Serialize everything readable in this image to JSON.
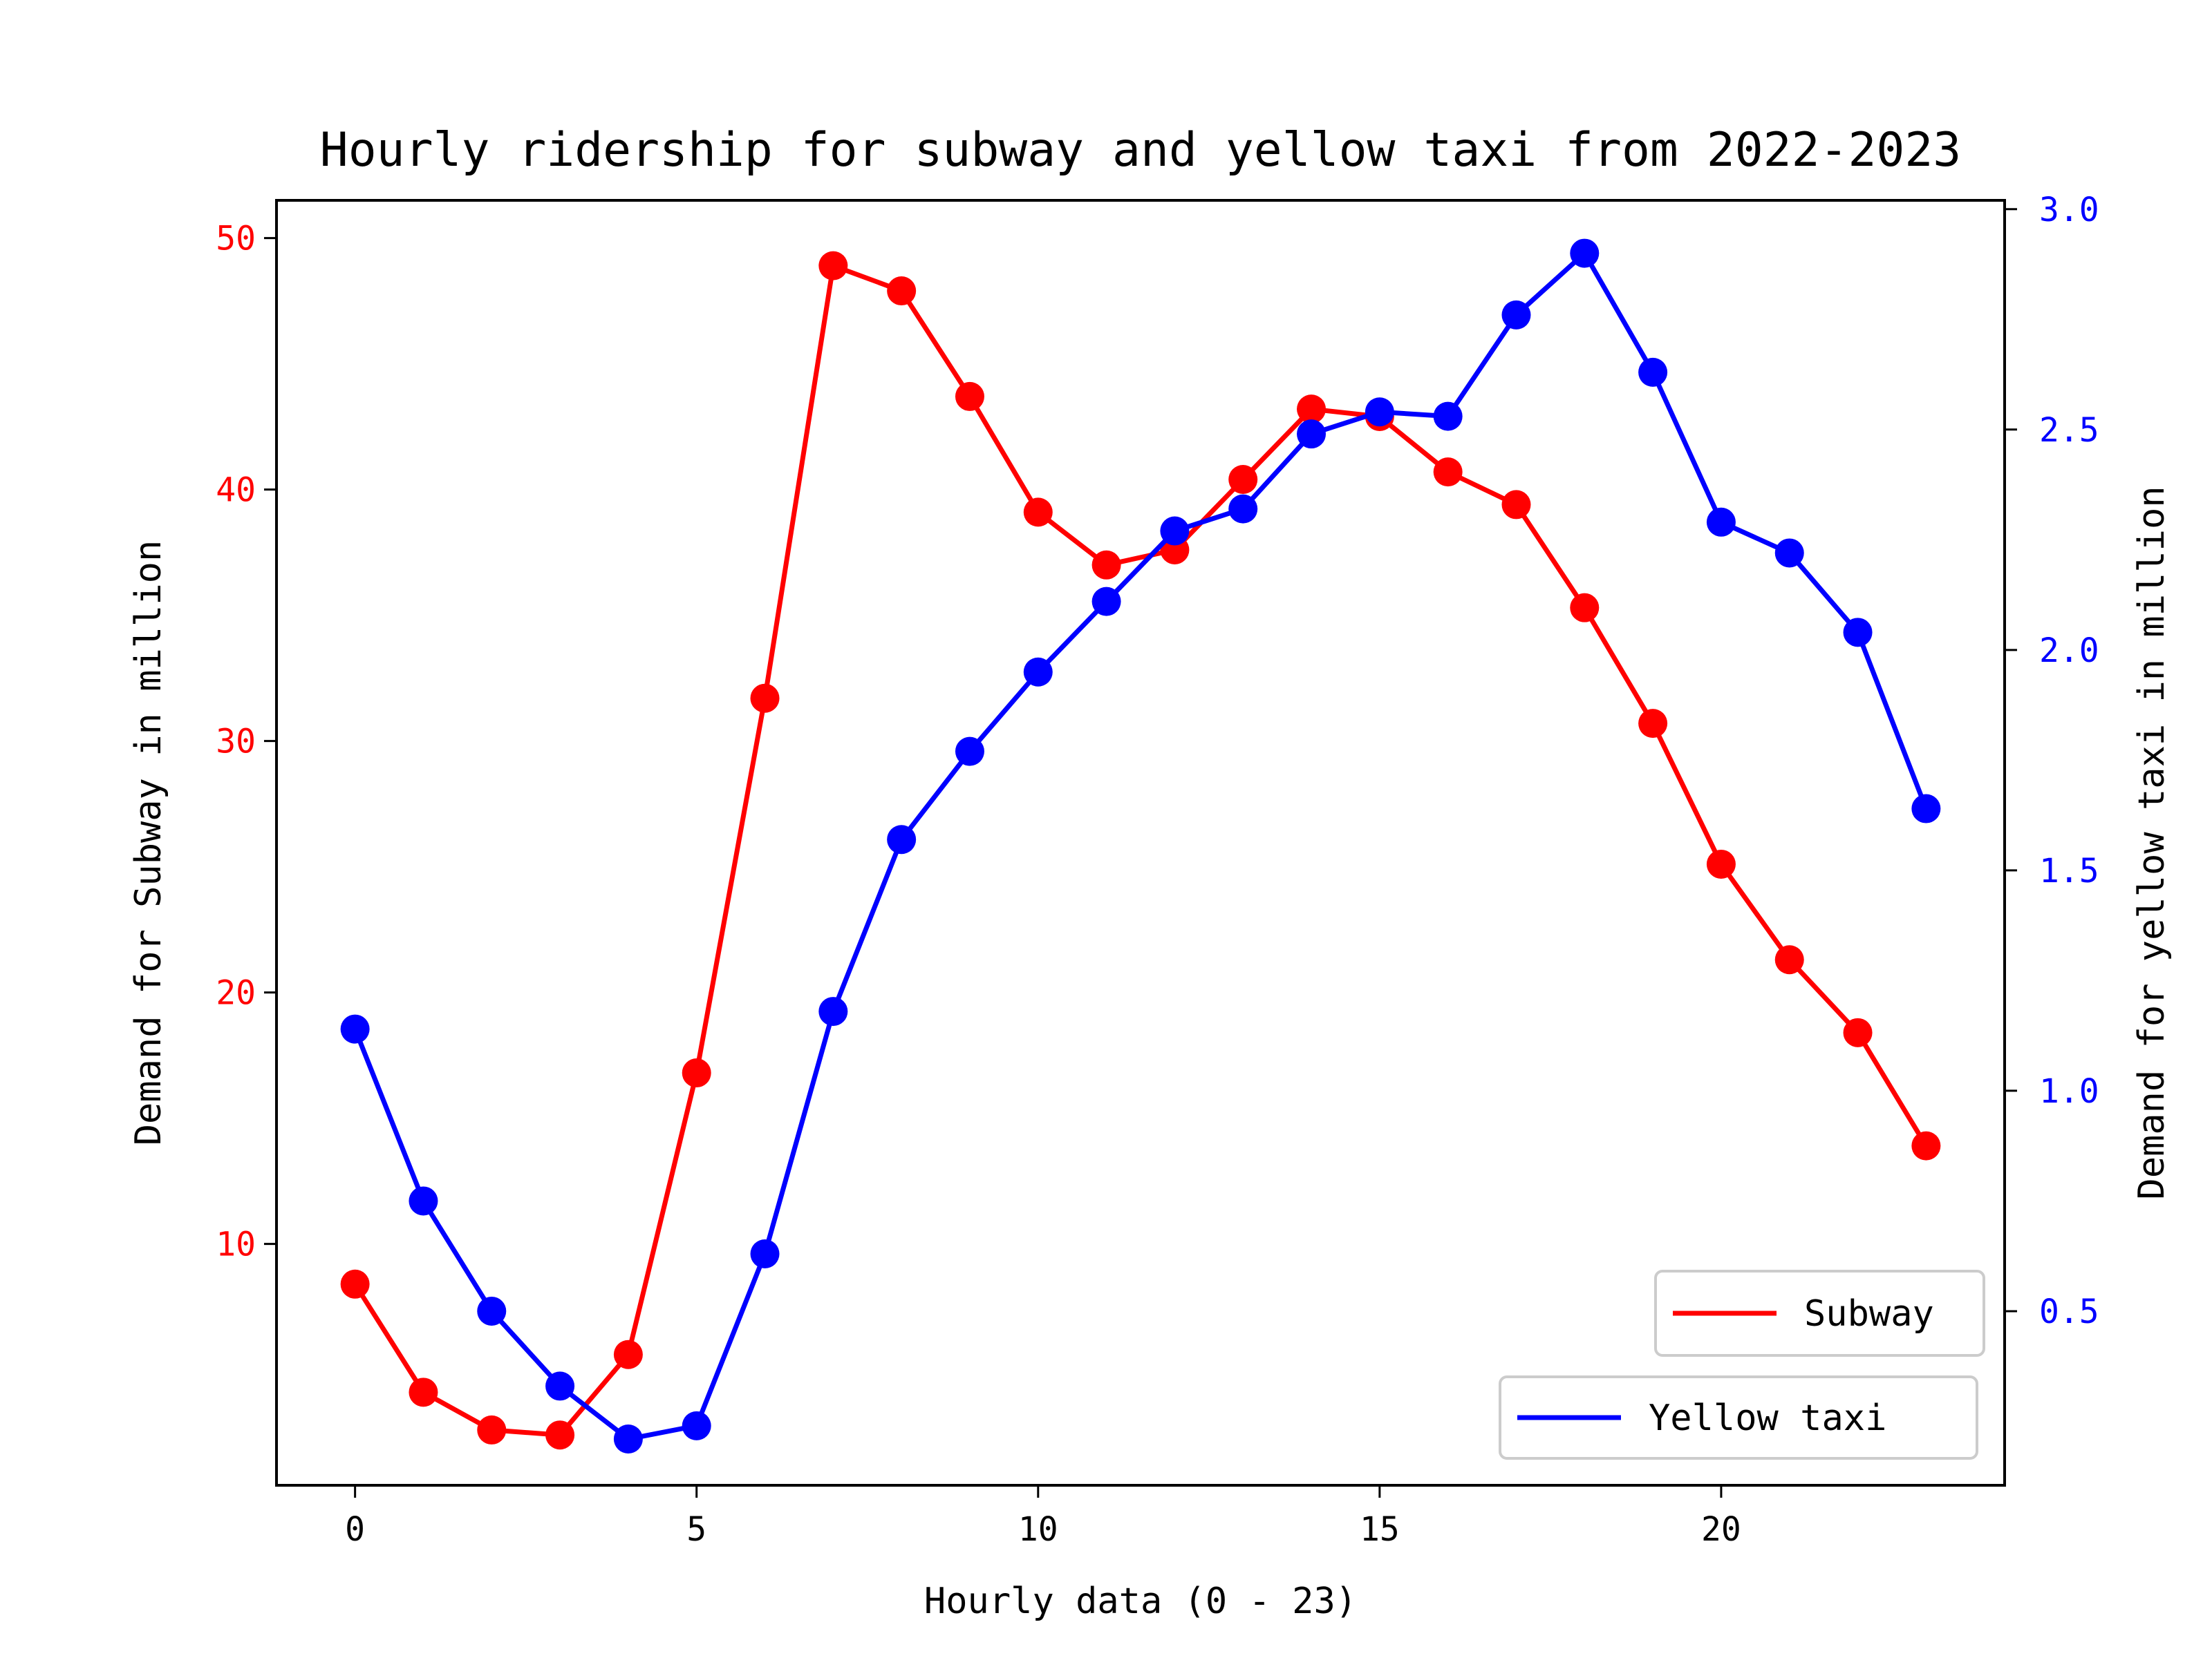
{
  "chart_data": {
    "type": "line",
    "title": "Hourly ridership for subway and yellow taxi from 2022-2023",
    "xlabel": "Hourly data (0 - 23)",
    "ylabel_left": "Demand for Subway in million",
    "ylabel_right": "Demand for yellow taxi in million",
    "x": [
      0,
      1,
      2,
      3,
      4,
      5,
      6,
      7,
      8,
      9,
      10,
      11,
      12,
      13,
      14,
      15,
      16,
      17,
      18,
      19,
      20,
      21,
      22,
      23
    ],
    "xlim": [
      -1.15,
      24.15
    ],
    "ylim_left": [
      0.4,
      51.5
    ],
    "ylim_right": [
      0.105,
      3.02
    ],
    "x_ticks": [
      0,
      5,
      10,
      15,
      20
    ],
    "y_ticks_left": [
      10,
      20,
      30,
      40,
      50
    ],
    "y_ticks_right": [
      0.5,
      1.0,
      1.5,
      2.0,
      2.5,
      3.0
    ],
    "grid": false,
    "legend_placement": "bottom-right",
    "series": [
      {
        "name": "Subway",
        "axis": "left",
        "color": "#ff0000",
        "values": [
          8.4,
          4.1,
          2.6,
          2.4,
          5.6,
          16.8,
          31.7,
          48.9,
          47.9,
          43.7,
          39.1,
          37.0,
          37.6,
          40.4,
          43.2,
          42.9,
          40.7,
          39.4,
          35.3,
          30.7,
          25.1,
          21.3,
          18.4,
          13.9
        ]
      },
      {
        "name": "Yellow taxi",
        "axis": "right",
        "color": "#0000ff",
        "values": [
          1.14,
          0.75,
          0.5,
          0.33,
          0.21,
          0.24,
          0.63,
          1.18,
          1.57,
          1.77,
          1.95,
          2.11,
          2.27,
          2.32,
          2.49,
          2.54,
          2.53,
          2.76,
          2.9,
          2.63,
          2.29,
          2.22,
          2.04,
          1.64
        ]
      }
    ]
  }
}
